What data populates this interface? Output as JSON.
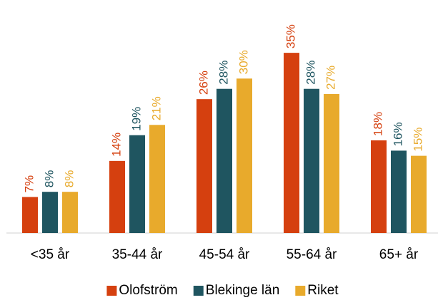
{
  "chart_data": {
    "type": "bar",
    "categories": [
      "<35 år",
      "35-44 år",
      "45-54 år",
      "55-64 år",
      "65+ år"
    ],
    "series": [
      {
        "name": "Olofström",
        "color": "#d5400f",
        "values": [
          7,
          14,
          26,
          35,
          18
        ],
        "value_labels": [
          "7%",
          "14%",
          "26%",
          "35%",
          "18%"
        ]
      },
      {
        "name": "Blekinge län",
        "color": "#1f5560",
        "values": [
          8,
          19,
          28,
          28,
          16
        ],
        "value_labels": [
          "8%",
          "19%",
          "28%",
          "28%",
          "16%"
        ]
      },
      {
        "name": "Riket",
        "color": "#e8aa2c",
        "values": [
          8,
          21,
          30,
          27,
          15
        ],
        "value_labels": [
          "8%",
          "21%",
          "30%",
          "27%",
          "15%"
        ]
      }
    ],
    "ylim": [
      0,
      40
    ]
  }
}
